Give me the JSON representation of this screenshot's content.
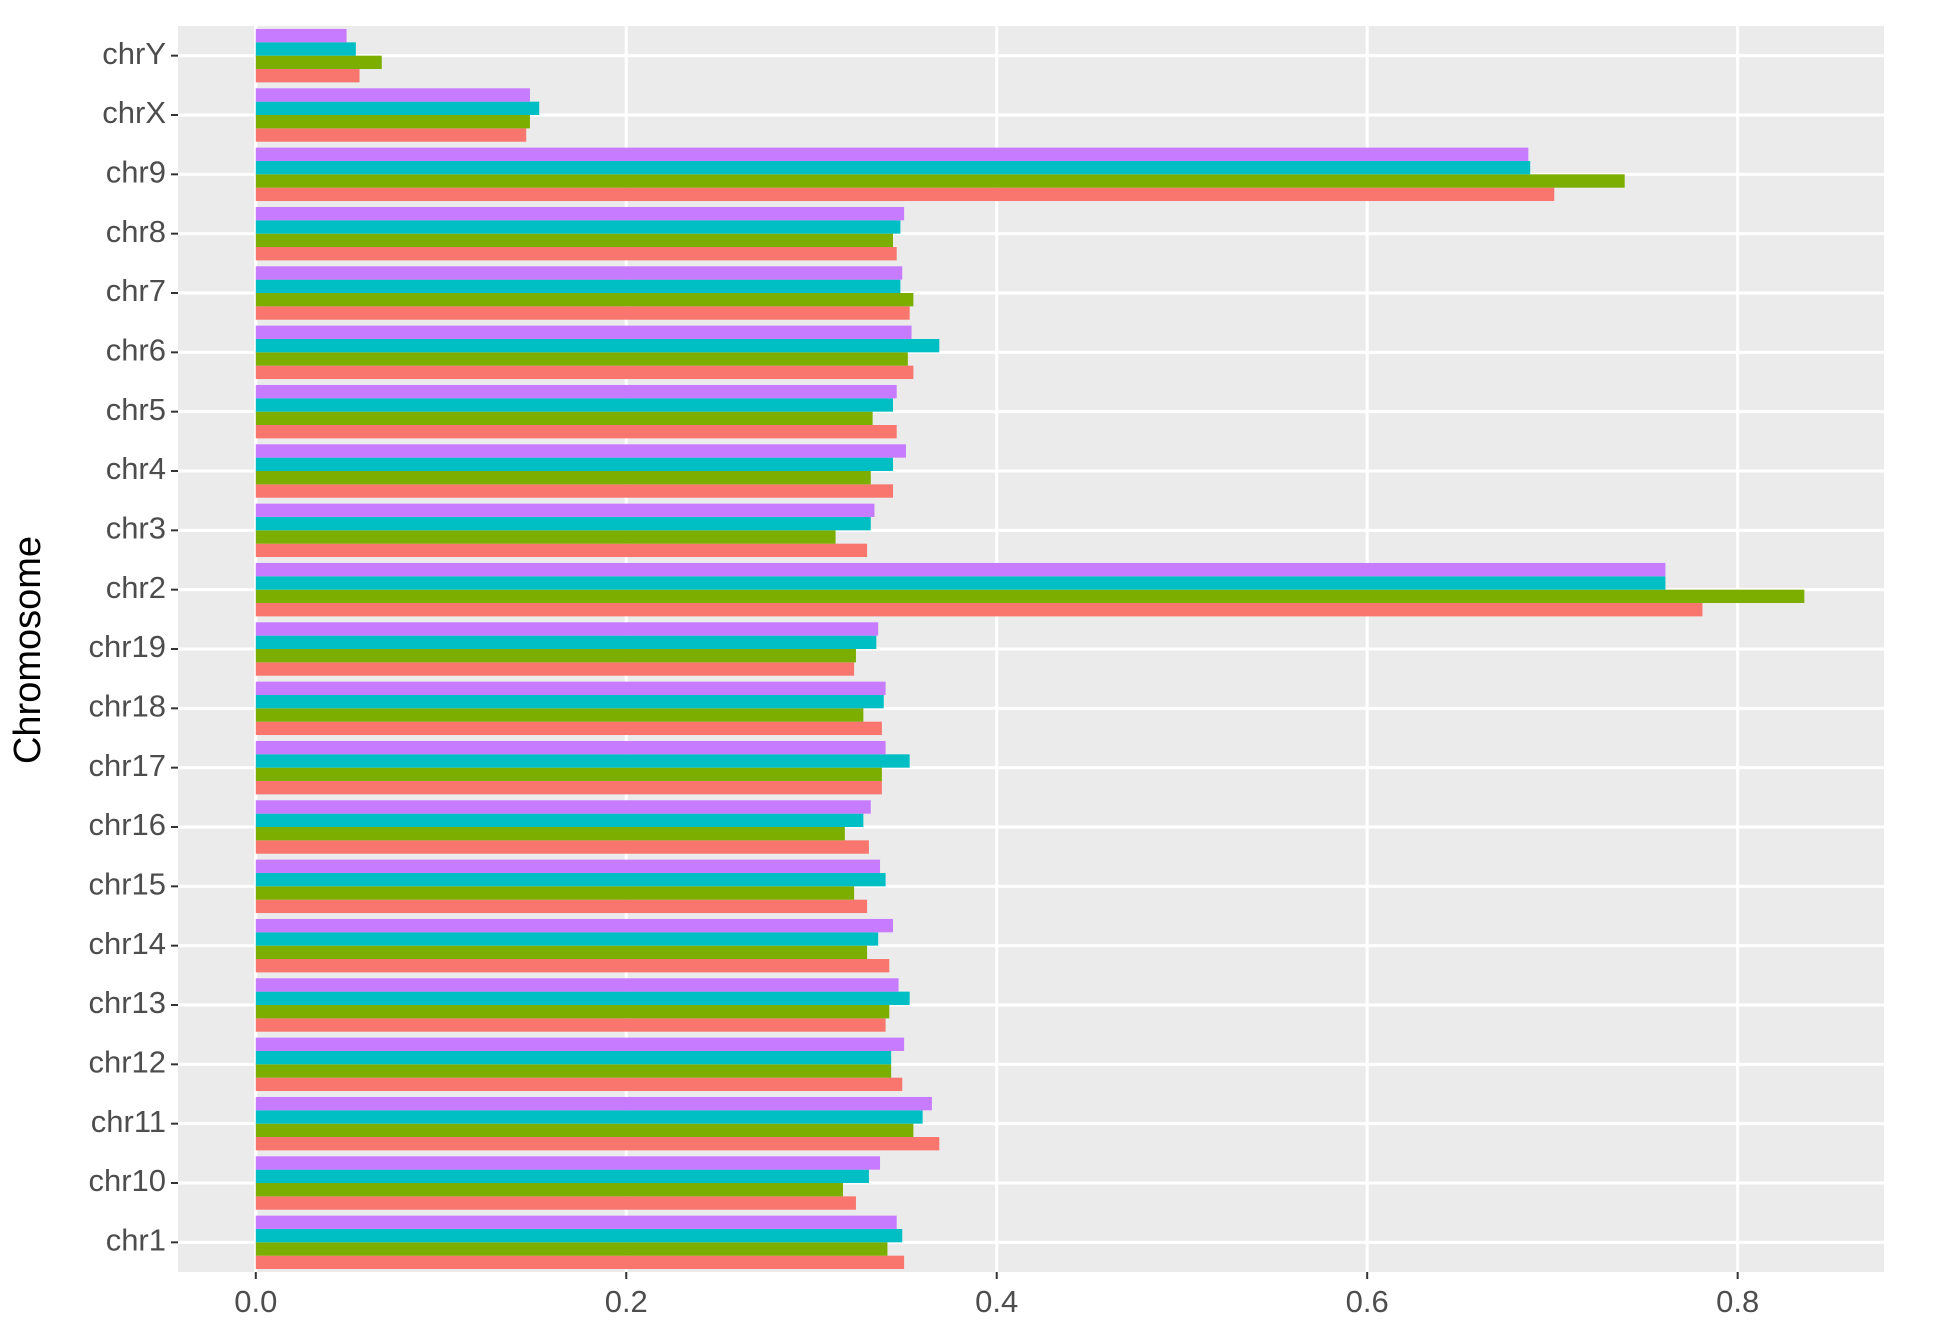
{
  "chart_data": {
    "type": "grouped-barh",
    "y_label": "Chromosome",
    "categories": [
      "chr1",
      "chr10",
      "chr11",
      "chr12",
      "chr13",
      "chr14",
      "chr15",
      "chr16",
      "chr17",
      "chr18",
      "chr19",
      "chr2",
      "chr3",
      "chr4",
      "chr5",
      "chr6",
      "chr7",
      "chr8",
      "chr9",
      "chrX",
      "chrY"
    ],
    "series": [
      {
        "color": "#F8766D",
        "values": [
          0.35,
          0.324,
          0.369,
          0.349,
          0.34,
          0.342,
          0.33,
          0.331,
          0.338,
          0.338,
          0.323,
          0.781,
          0.33,
          0.344,
          0.346,
          0.355,
          0.353,
          0.346,
          0.701,
          0.146,
          0.056
        ]
      },
      {
        "color": "#7CAE00",
        "values": [
          0.341,
          0.317,
          0.355,
          0.343,
          0.342,
          0.33,
          0.323,
          0.318,
          0.338,
          0.328,
          0.324,
          0.836,
          0.313,
          0.332,
          0.333,
          0.352,
          0.355,
          0.344,
          0.739,
          0.148,
          0.068
        ]
      },
      {
        "color": "#00BFC4",
        "values": [
          0.349,
          0.331,
          0.36,
          0.343,
          0.353,
          0.336,
          0.34,
          0.328,
          0.353,
          0.339,
          0.335,
          0.761,
          0.332,
          0.344,
          0.344,
          0.369,
          0.348,
          0.348,
          0.688,
          0.153,
          0.054
        ]
      },
      {
        "color": "#C77CFF",
        "values": [
          0.346,
          0.337,
          0.365,
          0.35,
          0.347,
          0.344,
          0.337,
          0.332,
          0.34,
          0.34,
          0.336,
          0.761,
          0.334,
          0.351,
          0.346,
          0.354,
          0.349,
          0.35,
          0.687,
          0.148,
          0.049
        ]
      }
    ],
    "xlim": [
      -0.042,
      0.879
    ],
    "xticks": [
      {
        "value": 0,
        "label": "0.0"
      },
      0.2,
      0.4,
      0.6,
      0.8
    ],
    "grid": true,
    "panel_color": "#EBEBEB"
  }
}
